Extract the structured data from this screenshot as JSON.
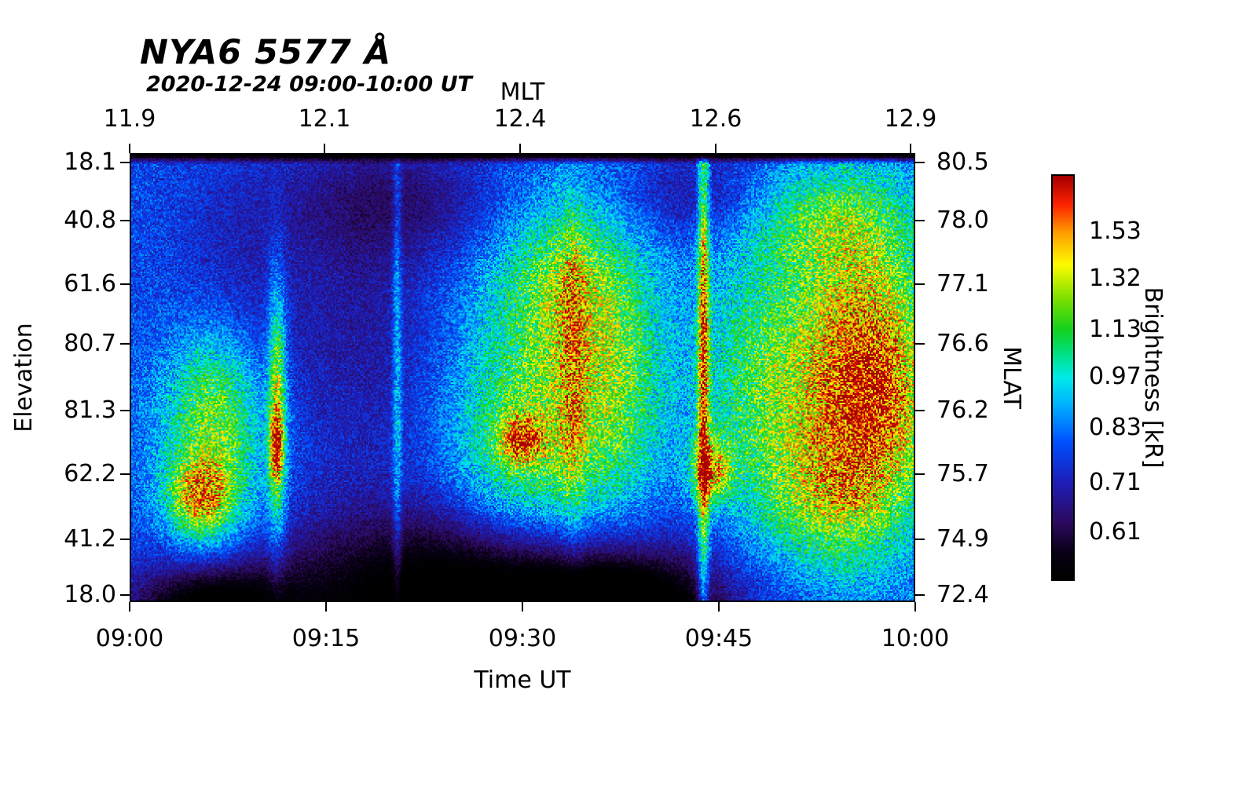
{
  "chart_data": {
    "type": "heatmap",
    "title": "NYA6 5577 Å",
    "subtitle": "2020-12-24 09:00-10:00 UT",
    "axes": {
      "top": {
        "label": "MLT",
        "ticks": [
          {
            "label": "11.9",
            "pos": 0.0
          },
          {
            "label": "12.1",
            "pos": 0.248
          },
          {
            "label": "12.4",
            "pos": 0.497
          },
          {
            "label": "12.6",
            "pos": 0.746
          },
          {
            "label": "12.9",
            "pos": 0.994
          }
        ]
      },
      "bottom": {
        "label": "Time UT",
        "ticks": [
          {
            "label": "09:00",
            "pos": 0.0
          },
          {
            "label": "09:15",
            "pos": 0.25
          },
          {
            "label": "09:30",
            "pos": 0.5
          },
          {
            "label": "09:45",
            "pos": 0.75
          },
          {
            "label": "10:00",
            "pos": 1.0
          }
        ]
      },
      "left": {
        "label": "Elevation",
        "ticks": [
          {
            "label": "18.1",
            "pos": 0.021
          },
          {
            "label": "40.8",
            "pos": 0.15
          },
          {
            "label": "61.6",
            "pos": 0.292
          },
          {
            "label": "80.7",
            "pos": 0.425
          },
          {
            "label": "81.3",
            "pos": 0.573
          },
          {
            "label": "62.2",
            "pos": 0.715
          },
          {
            "label": "41.2",
            "pos": 0.86
          },
          {
            "label": "18.0",
            "pos": 0.984
          }
        ]
      },
      "right": {
        "label": "MLAT",
        "ticks": [
          {
            "label": "80.5",
            "pos": 0.021
          },
          {
            "label": "78.0",
            "pos": 0.15
          },
          {
            "label": "77.1",
            "pos": 0.292
          },
          {
            "label": "76.6",
            "pos": 0.425
          },
          {
            "label": "76.2",
            "pos": 0.573
          },
          {
            "label": "75.7",
            "pos": 0.715
          },
          {
            "label": "74.9",
            "pos": 0.86
          },
          {
            "label": "72.4",
            "pos": 0.984
          }
        ]
      }
    },
    "colorbar": {
      "label": "Brightness [kR]",
      "ticks": [
        {
          "label": "1.53",
          "pos": 0.14
        },
        {
          "label": "1.32",
          "pos": 0.257
        },
        {
          "label": "1.13",
          "pos": 0.382
        },
        {
          "label": "0.97",
          "pos": 0.498
        },
        {
          "label": "0.83",
          "pos": 0.623
        },
        {
          "label": "0.71",
          "pos": 0.759
        },
        {
          "label": "0.61",
          "pos": 0.88
        }
      ]
    },
    "colormap": [
      [
        0.0,
        0,
        0,
        0
      ],
      [
        0.06,
        8,
        0,
        20
      ],
      [
        0.14,
        45,
        10,
        95
      ],
      [
        0.24,
        30,
        30,
        185
      ],
      [
        0.34,
        0,
        80,
        255
      ],
      [
        0.43,
        0,
        175,
        255
      ],
      [
        0.5,
        0,
        235,
        235
      ],
      [
        0.56,
        0,
        225,
        130
      ],
      [
        0.62,
        20,
        210,
        30
      ],
      [
        0.7,
        130,
        225,
        0
      ],
      [
        0.78,
        252,
        252,
        0
      ],
      [
        0.86,
        255,
        158,
        0
      ],
      [
        0.93,
        252,
        35,
        0
      ],
      [
        1.0,
        168,
        0,
        0
      ]
    ],
    "field": {
      "base": 0.33,
      "noise_mult": 0.5,
      "noise_add": 0.07,
      "features": [
        {
          "x": 0.105,
          "y": 0.66,
          "sx": 0.05,
          "sy": 0.17,
          "a": 0.3
        },
        {
          "x": 0.088,
          "y": 0.77,
          "sx": 0.028,
          "sy": 0.06,
          "a": 0.38
        },
        {
          "x": 0.105,
          "y": 0.52,
          "sx": 0.035,
          "sy": 0.1,
          "a": 0.12
        },
        {
          "x": 0.186,
          "y": 0.56,
          "sx": 0.008,
          "sy": 0.2,
          "a": 0.42
        },
        {
          "x": 0.185,
          "y": 0.66,
          "sx": 0.006,
          "sy": 0.05,
          "a": 0.4
        },
        {
          "x": 0.34,
          "y": 0.45,
          "sx": 0.004,
          "sy": 0.45,
          "a": 0.2
        },
        {
          "x": 0.55,
          "y": 0.5,
          "sx": 0.09,
          "sy": 0.28,
          "a": 0.3
        },
        {
          "x": 0.56,
          "y": 0.28,
          "sx": 0.05,
          "sy": 0.12,
          "a": 0.18
        },
        {
          "x": 0.498,
          "y": 0.64,
          "sx": 0.018,
          "sy": 0.035,
          "a": 0.34
        },
        {
          "x": 0.565,
          "y": 0.5,
          "sx": 0.012,
          "sy": 0.25,
          "a": 0.18
        },
        {
          "x": 0.5,
          "y": 0.68,
          "sx": 0.06,
          "sy": 0.12,
          "a": 0.16
        },
        {
          "x": 0.625,
          "y": 0.52,
          "sx": 0.035,
          "sy": 0.2,
          "a": 0.13
        },
        {
          "x": 0.732,
          "y": 0.45,
          "sx": 0.005,
          "sy": 0.5,
          "a": 0.5
        },
        {
          "x": 0.742,
          "y": 0.71,
          "sx": 0.018,
          "sy": 0.05,
          "a": 0.42
        },
        {
          "x": 0.8,
          "y": 0.55,
          "sx": 0.05,
          "sy": 0.22,
          "a": 0.18
        },
        {
          "x": 0.92,
          "y": 0.48,
          "sx": 0.09,
          "sy": 0.28,
          "a": 0.32
        },
        {
          "x": 0.945,
          "y": 0.55,
          "sx": 0.05,
          "sy": 0.2,
          "a": 0.38
        },
        {
          "x": 0.89,
          "y": 0.15,
          "sx": 0.07,
          "sy": 0.08,
          "a": 0.2
        },
        {
          "x": 0.88,
          "y": 0.78,
          "sx": 0.05,
          "sy": 0.11,
          "a": 0.18
        },
        {
          "x": 0.45,
          "y": 1.02,
          "sx": 0.2,
          "sy": 0.15,
          "a": -0.45
        },
        {
          "x": 0.1,
          "y": 1.03,
          "sx": 0.07,
          "sy": 0.08,
          "a": -0.35
        },
        {
          "x": 0.3,
          "y": 0.4,
          "sx": 0.08,
          "sy": 0.25,
          "a": -0.12
        },
        {
          "x": 0.35,
          "y": 0.1,
          "sx": 0.12,
          "sy": 0.1,
          "a": -0.14
        },
        {
          "x": 0.72,
          "y": 0.09,
          "sx": 0.08,
          "sy": 0.08,
          "a": -0.13
        },
        {
          "x": 0.62,
          "y": 1.03,
          "sx": 0.08,
          "sy": 0.08,
          "a": -0.3
        },
        {
          "x": 0.13,
          "y": 0.3,
          "sx": 0.06,
          "sy": 0.2,
          "a": -0.08
        }
      ]
    },
    "qualitative_features": [
      "speckled blue background with black band along top edge",
      "black region along bottom (low south elevations) between ~09:05 and ~09:40",
      "bright green/yellow arc with red core near 09:05 at low-mid elevation",
      "narrow bright vertical streak with red core near 09:11",
      "thin cyan vertical line near 09:21",
      "broad green/yellow auroral region 09:24-09:40 with small red spot near 09:30",
      "thin bright green full-height vertical line near 09:44 with red blob below mid-plot",
      "large green/yellow region 09:50-10:00 with extensive red core"
    ]
  }
}
